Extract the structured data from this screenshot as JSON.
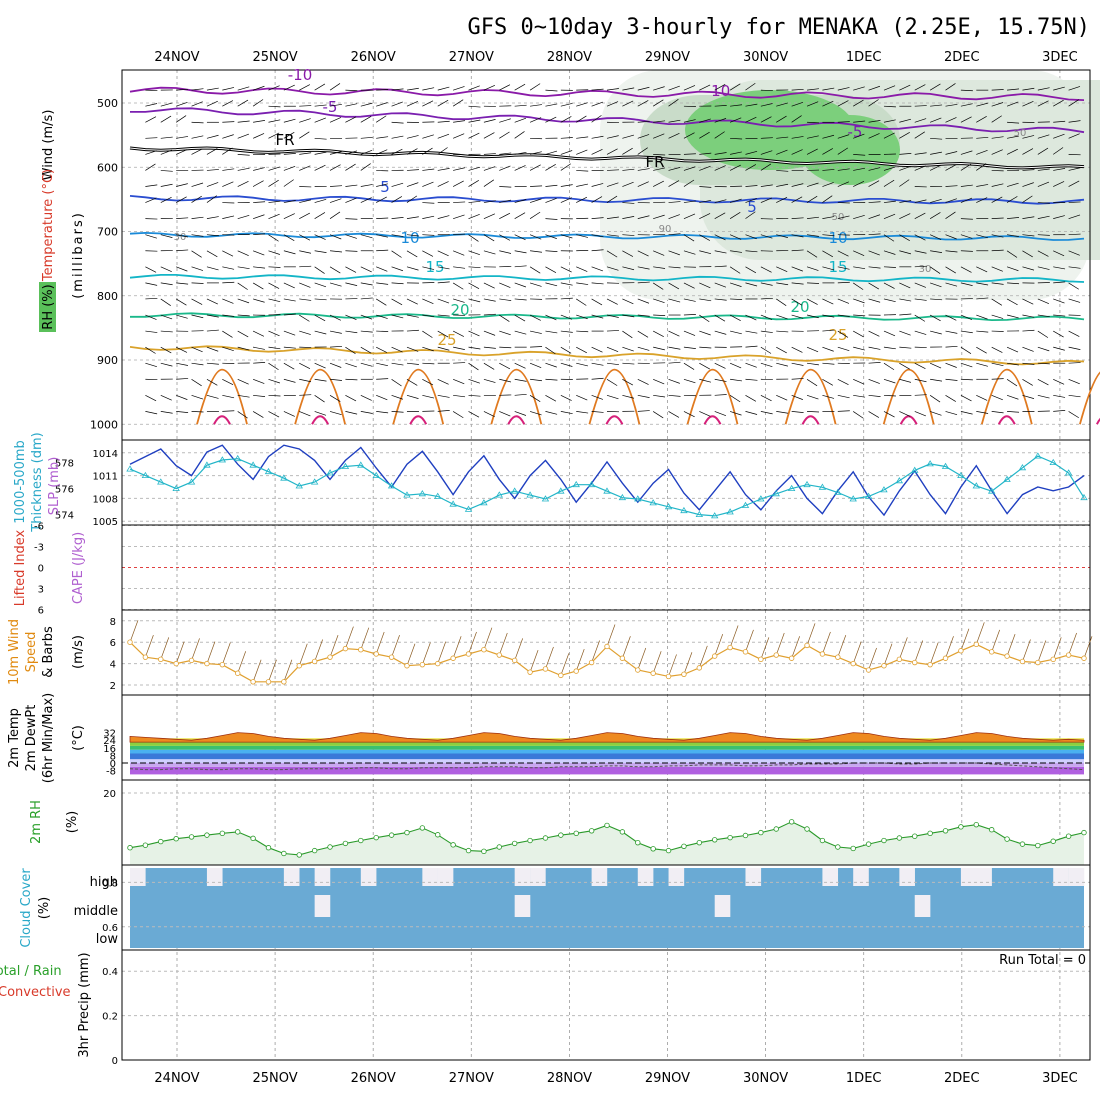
{
  "title": "GFS 0~10day 3-hourly for MENAKA (2.25E, 15.75N)",
  "chart_data": {
    "type": "meteogram",
    "x_dates": [
      "24NOV",
      "25NOV",
      "26NOV",
      "27NOV",
      "28NOV",
      "29NOV",
      "30NOV",
      "1DEC",
      "2DEC",
      "3DEC"
    ],
    "panels": [
      {
        "id": "upper",
        "labels": [
          "Wind (m/s)",
          "Temperature (°C)",
          "RH (%)",
          "(millibars)"
        ],
        "yticks": [
          "500",
          "600",
          "700",
          "800",
          "900",
          "1000"
        ],
        "contour_labels": [
          "-10",
          "-5",
          "FR",
          "5",
          "10",
          "15",
          "20",
          "25",
          "-10",
          "-5",
          "FR",
          "5",
          "10",
          "15",
          "20",
          "25",
          "50",
          "50",
          "30",
          "30",
          "90"
        ],
        "isotherms_c": [
          -10,
          -5,
          0,
          5,
          10,
          15,
          20,
          25
        ]
      },
      {
        "id": "slp",
        "labels": [
          "1000-500mb",
          "Thickness (dm)",
          "SLP (mb)"
        ],
        "yticks_left": [
          "578",
          "576",
          "574"
        ],
        "yticks_right": [
          "1014",
          "1011",
          "1008",
          "1005"
        ],
        "series": [
          {
            "name": "SLP (mb)",
            "values": [
              1012.5,
              1013.5,
              1014.5,
              1012.3,
              1011.0,
              1014.1,
              1015.0,
              1012.5,
              1010.5,
              1013.5,
              1015.0,
              1014.5,
              1013.0,
              1010.5,
              1013.0,
              1014.7,
              1012.0,
              1009.5,
              1012.5,
              1014.2,
              1011.5,
              1008.5,
              1011.5,
              1013.6,
              1010.5,
              1008.0,
              1011.0,
              1013.0,
              1010.5,
              1007.5,
              1010.0,
              1012.8,
              1010.0,
              1007.5,
              1010.0,
              1011.8,
              1008.7,
              1006.5,
              1009.0,
              1011.5,
              1008.5,
              1006.5,
              1009.0,
              1011.0,
              1008.0,
              1006.0,
              1009.0,
              1011.5,
              1008.2,
              1005.8,
              1009.0,
              1011.6,
              1008.5,
              1006.0,
              1009.5,
              1012.3,
              1009.0,
              1006.0,
              1008.5,
              1009.5,
              1009.0,
              1009.5,
              1011.0
            ]
          },
          {
            "name": "1000-500mb Thickness (dm)",
            "values": [
              577.5,
              577.0,
              576.5,
              576.0,
              576.5,
              577.8,
              578.2,
              578.3,
              577.8,
              577.3,
              576.8,
              576.2,
              576.5,
              577.2,
              577.7,
              577.8,
              577.0,
              576.2,
              575.5,
              575.6,
              575.4,
              574.8,
              574.4,
              574.9,
              575.5,
              575.8,
              575.5,
              575.2,
              575.8,
              576.3,
              576.3,
              575.8,
              575.3,
              575.2,
              574.9,
              574.6,
              574.3,
              574.0,
              573.9,
              574.2,
              574.7,
              575.2,
              575.6,
              576.0,
              576.3,
              576.1,
              575.7,
              575.2,
              575.4,
              575.9,
              576.6,
              577.4,
              577.9,
              577.7,
              577.0,
              576.2,
              575.8,
              576.7,
              577.6,
              578.5,
              578.0,
              577.2,
              575.3
            ]
          }
        ]
      },
      {
        "id": "cape",
        "labels": [
          "Lifted Index",
          "CAPE (J/kg)"
        ],
        "yticks": [
          "-6",
          "-3",
          "0",
          "3",
          "6"
        ]
      },
      {
        "id": "wind10m",
        "labels": [
          "10m Wind",
          "Speed",
          "& Barbs",
          "(m/s)"
        ],
        "yticks": [
          "8",
          "6",
          "4",
          "2"
        ],
        "speed_values": [
          6.0,
          4.6,
          4.4,
          4.0,
          4.3,
          4.0,
          3.9,
          3.1,
          2.3,
          2.3,
          2.3,
          3.8,
          4.2,
          4.6,
          5.4,
          5.3,
          4.9,
          4.6,
          3.8,
          3.9,
          4.0,
          4.5,
          4.9,
          5.3,
          4.8,
          4.3,
          3.2,
          3.5,
          2.9,
          3.3,
          4.1,
          5.6,
          4.5,
          3.4,
          3.1,
          2.8,
          3.0,
          3.6,
          4.7,
          5.5,
          5.1,
          4.4,
          4.8,
          4.5,
          5.7,
          4.9,
          4.6,
          4.0,
          3.4,
          3.8,
          4.4,
          4.1,
          3.9,
          4.5,
          5.2,
          5.8,
          5.1,
          4.7,
          4.2,
          4.1,
          4.4,
          4.8,
          4.5
        ]
      },
      {
        "id": "temp2m",
        "labels": [
          "2m Temp",
          "2m DewPt",
          "(6hr Min/Max)",
          "(°C)"
        ],
        "yticks": [
          "32",
          "24",
          "16",
          "8",
          "0",
          "-8"
        ],
        "temp_values": [
          28,
          27,
          26,
          25,
          24,
          26,
          29,
          32,
          31,
          28,
          26,
          25,
          24,
          26,
          29,
          32,
          31,
          28,
          26,
          25,
          24,
          26,
          29,
          32,
          31,
          28,
          26,
          25,
          24,
          26,
          29,
          32,
          31,
          28,
          26,
          25,
          24,
          26,
          29,
          32,
          31,
          28,
          26,
          25,
          24,
          26,
          29,
          32,
          31,
          28,
          26,
          25,
          24,
          26,
          29,
          32,
          31,
          28,
          26,
          25,
          24,
          25,
          24
        ],
        "dewpoint_values": [
          -6,
          -7,
          -7,
          -6,
          -6,
          -7,
          -7,
          -6,
          -6,
          -7,
          -7,
          -6,
          -6,
          -6,
          -6,
          -5,
          -5,
          -6,
          -6,
          -5,
          -5,
          -5,
          -5,
          -4,
          -4,
          -4,
          -5,
          -5,
          -4,
          -4,
          -4,
          -3,
          -3,
          -4,
          -4,
          -3,
          -3,
          -2,
          -2,
          -2,
          -3,
          -3,
          -2,
          -2,
          -1,
          -1,
          -1,
          0,
          0,
          0,
          -1,
          -1,
          0,
          0,
          0,
          0,
          -1,
          -2,
          -3,
          -4,
          -5,
          -6,
          -7
        ]
      },
      {
        "id": "rh2m",
        "labels": [
          "2m RH",
          "(%)"
        ],
        "yticks": [
          "20"
        ],
        "values": [
          4.8,
          5.5,
          6.5,
          7.3,
          7.8,
          8.3,
          8.8,
          9.2,
          7.4,
          4.8,
          3.2,
          2.8,
          4.0,
          5.0,
          6.0,
          6.8,
          7.6,
          8.3,
          9.0,
          10.3,
          8.4,
          5.6,
          4.0,
          3.8,
          5.0,
          6.0,
          6.8,
          7.5,
          8.3,
          8.8,
          9.5,
          11.0,
          9.2,
          6.2,
          4.5,
          4.0,
          5.2,
          6.2,
          7.0,
          7.6,
          8.2,
          9.0,
          10.0,
          12.0,
          10.0,
          6.8,
          5.0,
          4.6,
          5.8,
          6.8,
          7.5,
          8.0,
          8.8,
          9.5,
          10.6,
          11.2,
          9.8,
          7.2,
          5.8,
          5.4,
          6.6,
          8.0,
          9.0
        ]
      },
      {
        "id": "cloud",
        "labels": [
          "Cloud Cover",
          "(%)"
        ],
        "rows": [
          "high",
          "middle",
          "low"
        ]
      },
      {
        "id": "precip",
        "labels": [
          "Total / Rain",
          "Convective",
          "3hr Precip (mm)"
        ],
        "yticks": [
          "0.8",
          "0.6",
          "0.4",
          "0.2",
          "0"
        ],
        "run_total_label": "Run Total = 0",
        "values": []
      }
    ]
  },
  "colors": {
    "wind_barb": "#000000",
    "temp_minus10": "#8a1aa8",
    "temp_minus5": "#7a1fb0",
    "freezing": "#000000",
    "temp_5": "#2a4dd0",
    "temp_10": "#1a8ad8",
    "temp_15": "#13b5c7",
    "temp_20": "#1ab88a",
    "temp_25": "#d9a22a",
    "slp_line": "#1f3fc0",
    "thickness_line": "#22b5c8",
    "wind10m_line": "#e0a030",
    "wind10m_barb": "#8a5a20",
    "rh_line": "#2a9a2a",
    "cloud_fill": "#6aaad4",
    "cloud_gap": "#f1eef4",
    "label_red": "#d83a2a",
    "label_purple": "#b060d0",
    "label_orange": "#e08a10",
    "label_green": "#2aa02a",
    "label_cyan": "#2aa8c8"
  }
}
